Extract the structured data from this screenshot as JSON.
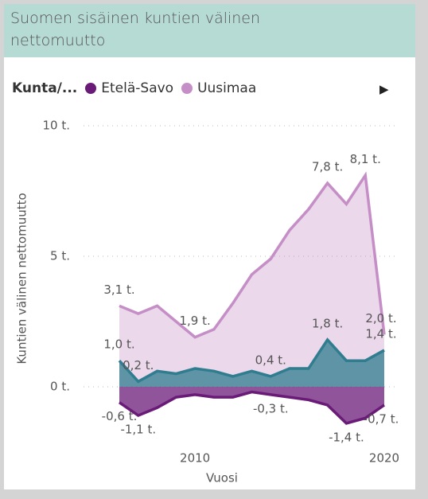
{
  "chart_data": {
    "type": "area",
    "title": "Suomen sisäinen kuntien välinen nettomuutto",
    "legend_title": "Kunta/...",
    "x": [
      2006,
      2007,
      2008,
      2009,
      2010,
      2011,
      2012,
      2013,
      2014,
      2015,
      2016,
      2017,
      2018,
      2019,
      2020
    ],
    "series": [
      {
        "name": "Etelä-Savo",
        "color": "#6a1b78",
        "values": [
          -0.6,
          -1.1,
          -0.8,
          -0.4,
          -0.3,
          -0.4,
          -0.4,
          -0.2,
          -0.3,
          -0.4,
          -0.5,
          -0.7,
          -1.4,
          -1.2,
          -0.7
        ],
        "value_labels": [
          "-0,6 t.",
          "-1,1 t.",
          null,
          null,
          null,
          null,
          null,
          null,
          "-0,3 t.",
          null,
          null,
          null,
          "-1,4 t.",
          null,
          "-0,7 t."
        ]
      },
      {
        "name": "Uusimaa",
        "color": "#c58ec6",
        "values": [
          3.1,
          2.8,
          3.1,
          2.5,
          1.9,
          2.2,
          3.2,
          4.3,
          4.9,
          6.0,
          6.8,
          7.8,
          7.0,
          8.1,
          2.0
        ],
        "value_labels": [
          "3,1 t.",
          null,
          null,
          null,
          "1,9 t.",
          null,
          null,
          null,
          null,
          null,
          null,
          "7,8 t.",
          null,
          "8,1 t.",
          "2,0 t."
        ]
      },
      {
        "color": "#2f7d8f",
        "values": [
          1.0,
          0.2,
          0.6,
          0.5,
          0.7,
          0.6,
          0.4,
          0.6,
          0.4,
          0.7,
          0.7,
          1.8,
          1.0,
          1.0,
          1.4
        ],
        "value_labels": [
          "1,0 t.",
          "0,2 t.",
          null,
          null,
          null,
          null,
          null,
          null,
          "0,4 t.",
          null,
          null,
          "1,8 t.",
          null,
          null,
          "1,4 t."
        ]
      }
    ],
    "xlim": [
      2006,
      2020
    ],
    "xticks": [
      2010,
      2020
    ],
    "ylim": [
      -1.5,
      10
    ],
    "yticks": [
      {
        "value": 0,
        "label": "0 t."
      },
      {
        "value": 5,
        "label": "5 t."
      },
      {
        "value": 10,
        "label": "10 t."
      }
    ],
    "xlabel": "Vuosi",
    "ylabel": "Kuntien välinen nettomuutto",
    "grid": true
  }
}
